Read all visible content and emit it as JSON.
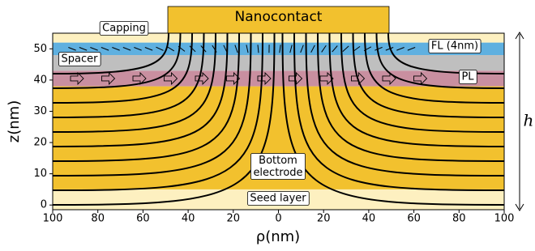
{
  "chart_data": {
    "type": "layers",
    "x_label": "ρ(nm)",
    "y_label": "z(nm)",
    "height_label": "h",
    "xlim": [
      -100,
      100
    ],
    "ylim": [
      -1.5,
      55
    ],
    "xticks": [
      {
        "value": -100,
        "label": "100"
      },
      {
        "value": -80,
        "label": "80"
      },
      {
        "value": -60,
        "label": "60"
      },
      {
        "value": -40,
        "label": "40"
      },
      {
        "value": -20,
        "label": "20"
      },
      0,
      20,
      40,
      60,
      80,
      100
    ],
    "yticks": [
      0,
      10,
      20,
      30,
      40,
      50
    ],
    "layers": [
      {
        "name": "Seed layer",
        "z": [
          -1.5,
          5
        ],
        "color": "#fdf0c0"
      },
      {
        "name": "Bottom electrode",
        "z": [
          5,
          38
        ],
        "color": "#f2c12e"
      },
      {
        "name": "PL",
        "z": [
          38,
          43
        ],
        "color": "#c98fa0"
      },
      {
        "name": "Spacer",
        "z": [
          43,
          48
        ],
        "color": "#bfbfbf"
      },
      {
        "name": "FL (4nm)",
        "z": [
          48,
          52
        ],
        "color": "#5fb0e0"
      },
      {
        "name": "Capping",
        "z": [
          52,
          55
        ],
        "color": "#fdf0c0"
      }
    ],
    "nanocontact": {
      "name": "Nanocontact",
      "rho": [
        -49,
        49
      ],
      "color": "#f2c12e"
    }
  }
}
